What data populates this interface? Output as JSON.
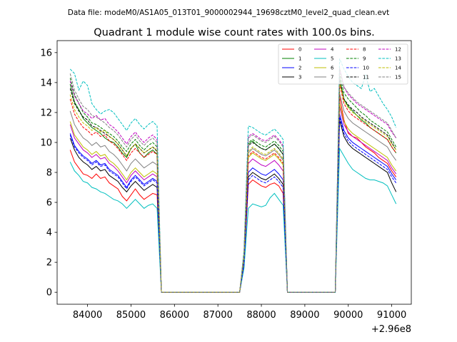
{
  "chart_data": {
    "type": "line",
    "suptitle": "Data file: modeM0/AS1A05_013T01_9000002944_19698cztM0_level2_quad_clean.evt",
    "title": "Quadrant 1 module wise count rates with 100.0s bins.",
    "xlabel": "",
    "ylabel": "",
    "x_offset_label": "+2.96e8",
    "xlim": [
      83300,
      91450
    ],
    "ylim": [
      -0.8,
      16.8
    ],
    "xticks": [
      84000,
      85000,
      86000,
      87000,
      88000,
      89000,
      90000,
      91000
    ],
    "yticks": [
      0,
      2,
      4,
      6,
      8,
      10,
      12,
      14,
      16
    ],
    "grid": false,
    "legend": {
      "placement": "top-right",
      "ncol": 4
    },
    "segments": [
      {
        "x_start": 83600,
        "x_end": 85600,
        "step": 100
      },
      {
        "x_start": 87600,
        "x_end": 88500,
        "step": 100
      },
      {
        "x_start": 89800,
        "x_end": 91100,
        "step": 100
      }
    ],
    "gap_x": [
      85700,
      85800,
      87500,
      88600,
      88700,
      89700
    ],
    "series": [
      {
        "name": "0",
        "color": "#ff0000",
        "dash": "solid",
        "values": [
          [
            9.5,
            8.7,
            8.3,
            7.9,
            7.8,
            7.6,
            7.9,
            7.6,
            7.7,
            7.3,
            7.1,
            6.9,
            6.4,
            6.1,
            6.5,
            6.9,
            6.5,
            6.2,
            6.4,
            6.6,
            6.5
          ],
          [
            1.8,
            7.2,
            7.5,
            7.3,
            7.1,
            7.0,
            7.2,
            7.3,
            7.1,
            6.6
          ],
          [
            13.1,
            11.5,
            10.6,
            10.4,
            10.3,
            10.0,
            9.7,
            9.5,
            9.3,
            9.0,
            8.8,
            8.6,
            8.1,
            7.7
          ]
        ]
      },
      {
        "name": "1",
        "color": "#008000",
        "dash": "solid",
        "values": [
          [
            13.9,
            12.7,
            12.2,
            11.6,
            11.3,
            11.0,
            10.8,
            10.6,
            10.3,
            10.1,
            10.0,
            9.7,
            9.3,
            9.0,
            9.6,
            9.9,
            9.3,
            9.0,
            9.3,
            9.5,
            9.2
          ],
          [
            2.5,
            9.9,
            10.1,
            9.8,
            9.6,
            9.5,
            9.7,
            9.9,
            9.6,
            9.2
          ],
          [
            14.3,
            12.9,
            12.4,
            12.1,
            11.8,
            11.5,
            11.3,
            11.0,
            10.8,
            10.6,
            10.4,
            10.2,
            9.7,
            9.3
          ]
        ]
      },
      {
        "name": "2",
        "color": "#0000ff",
        "dash": "solid",
        "values": [
          [
            10.6,
            9.8,
            9.4,
            9.1,
            8.9,
            8.6,
            8.8,
            8.5,
            8.6,
            8.2,
            8.0,
            7.8,
            7.4,
            7.0,
            7.5,
            7.8,
            7.5,
            7.2,
            7.4,
            7.6,
            7.4
          ],
          [
            2.0,
            8.0,
            8.3,
            8.1,
            7.9,
            7.8,
            8.0,
            8.2,
            7.9,
            7.5
          ],
          [
            11.9,
            10.8,
            10.3,
            10.0,
            9.8,
            9.6,
            9.4,
            9.2,
            9.0,
            8.8,
            8.6,
            8.4,
            7.9,
            7.5
          ]
        ]
      },
      {
        "name": "3",
        "color": "#000000",
        "dash": "solid",
        "values": [
          [
            10.3,
            9.5,
            9.0,
            8.7,
            8.5,
            8.2,
            8.4,
            8.1,
            8.2,
            7.8,
            7.6,
            7.4,
            7.0,
            6.7,
            7.1,
            7.4,
            7.1,
            6.8,
            7.0,
            7.2,
            7.0
          ],
          [
            1.9,
            7.7,
            8.0,
            7.8,
            7.6,
            7.5,
            7.7,
            7.9,
            7.6,
            7.2
          ],
          [
            11.5,
            10.4,
            9.9,
            9.6,
            9.4,
            9.2,
            9.0,
            8.8,
            8.6,
            8.4,
            8.2,
            8.0,
            7.3,
            6.7
          ]
        ]
      },
      {
        "name": "4",
        "color": "#bf00bf",
        "dash": "solid",
        "values": [
          [
            11.2,
            10.3,
            9.9,
            9.5,
            9.3,
            9.0,
            9.2,
            8.9,
            9.0,
            8.6,
            8.4,
            8.1,
            7.7,
            7.3,
            7.8,
            8.1,
            7.8,
            7.5,
            7.7,
            7.9,
            7.7
          ],
          [
            2.1,
            8.6,
            8.9,
            8.7,
            8.5,
            8.4,
            8.6,
            8.8,
            8.5,
            8.1
          ],
          [
            12.4,
            11.2,
            10.7,
            10.4,
            10.2,
            10.0,
            9.8,
            9.6,
            9.4,
            9.2,
            9.0,
            8.8,
            8.3,
            7.9
          ]
        ]
      },
      {
        "name": "5",
        "color": "#00bfbf",
        "dash": "solid",
        "values": [
          [
            8.7,
            8.1,
            7.8,
            7.4,
            7.3,
            7.0,
            6.9,
            6.7,
            6.6,
            6.4,
            6.2,
            6.1,
            5.9,
            5.6,
            5.9,
            6.2,
            5.9,
            5.6,
            5.8,
            5.9,
            5.6
          ],
          [
            1.6,
            5.6,
            5.9,
            5.8,
            5.7,
            5.8,
            6.3,
            6.6,
            6.2,
            5.8
          ],
          [
            9.6,
            9.1,
            8.6,
            8.2,
            8.0,
            7.8,
            7.6,
            7.5,
            7.5,
            7.4,
            7.3,
            7.1,
            6.5,
            5.9
          ]
        ]
      },
      {
        "name": "6",
        "color": "#bfbf00",
        "dash": "solid",
        "values": [
          [
            11.4,
            10.5,
            10.1,
            9.7,
            9.5,
            9.2,
            9.4,
            9.1,
            9.2,
            8.8,
            8.6,
            8.3,
            7.9,
            7.5,
            8.0,
            8.3,
            8.0,
            7.7,
            7.9,
            8.1,
            7.9
          ],
          [
            2.2,
            9.0,
            9.3,
            9.1,
            8.9,
            8.8,
            9.0,
            9.2,
            8.9,
            8.5
          ],
          [
            12.6,
            11.4,
            10.9,
            10.6,
            10.4,
            10.2,
            10.0,
            9.8,
            9.6,
            9.4,
            9.2,
            9.0,
            8.5,
            8.1
          ]
        ]
      },
      {
        "name": "7",
        "color": "#808080",
        "dash": "solid",
        "values": [
          [
            12.1,
            11.2,
            10.7,
            10.3,
            10.1,
            9.8,
            10.0,
            9.7,
            9.8,
            9.4,
            9.2,
            8.9,
            8.5,
            8.1,
            8.6,
            8.9,
            8.6,
            8.3,
            8.5,
            8.7,
            8.5
          ],
          [
            2.3,
            9.3,
            9.6,
            9.4,
            9.2,
            9.1,
            9.3,
            9.5,
            9.2,
            8.8
          ],
          [
            13.3,
            12.1,
            11.6,
            11.3,
            11.1,
            10.9,
            10.7,
            10.5,
            10.3,
            10.1,
            9.9,
            9.7,
            9.2,
            8.8
          ]
        ]
      },
      {
        "name": "8",
        "color": "#ff0000",
        "dash": "dashed",
        "values": [
          [
            12.9,
            11.9,
            11.4,
            11.0,
            10.8,
            10.5,
            10.7,
            10.4,
            10.5,
            10.1,
            9.9,
            9.6,
            9.2,
            8.8,
            9.3,
            9.6,
            9.3,
            9.0,
            9.2,
            9.4,
            9.2
          ],
          [
            2.4,
            9.1,
            9.4,
            9.2,
            9.0,
            8.9,
            9.1,
            9.3,
            9.0,
            8.6
          ],
          [
            13.9,
            12.6,
            12.1,
            11.8,
            11.6,
            11.4,
            11.2,
            11.0,
            10.8,
            10.6,
            10.4,
            10.2,
            9.7,
            9.3
          ]
        ]
      },
      {
        "name": "9",
        "color": "#008000",
        "dash": "dashed",
        "values": [
          [
            14.3,
            13.2,
            12.6,
            12.0,
            11.7,
            11.3,
            11.2,
            11.0,
            10.8,
            10.6,
            10.4,
            10.1,
            9.7,
            9.4,
            9.9,
            10.2,
            9.8,
            9.5,
            9.8,
            10.0,
            9.7
          ],
          [
            2.5,
            10.0,
            10.2,
            10.0,
            9.8,
            9.7,
            9.9,
            10.1,
            9.8,
            9.4
          ],
          [
            14.6,
            13.3,
            12.9,
            12.6,
            12.3,
            12.0,
            11.8,
            11.5,
            11.3,
            11.1,
            10.9,
            10.7,
            10.2,
            9.7
          ]
        ]
      },
      {
        "name": "10",
        "color": "#0000ff",
        "dash": "dashed",
        "values": [
          [
            10.5,
            9.7,
            9.3,
            9.0,
            8.8,
            8.5,
            8.7,
            8.4,
            8.5,
            8.1,
            7.9,
            7.7,
            7.3,
            6.9,
            7.4,
            7.7,
            7.4,
            7.1,
            7.3,
            7.5,
            7.3
          ],
          [
            1.9,
            7.5,
            7.8,
            7.6,
            7.4,
            7.3,
            7.5,
            7.7,
            7.4,
            7.0
          ],
          [
            11.7,
            10.6,
            10.1,
            9.8,
            9.6,
            9.4,
            9.2,
            9.0,
            8.8,
            8.6,
            8.4,
            8.2,
            7.7,
            7.3
          ]
        ]
      },
      {
        "name": "11",
        "color": "#000000",
        "dash": "dashed",
        "values": [
          [
            13.6,
            12.6,
            12.1,
            11.7,
            11.5,
            11.1,
            11.0,
            10.8,
            10.6,
            10.4,
            10.2,
            9.9,
            9.5,
            9.1,
            9.6,
            9.9,
            9.6,
            9.3,
            9.5,
            9.7,
            9.4
          ],
          [
            2.5,
            9.8,
            10.0,
            9.8,
            9.6,
            9.5,
            9.7,
            9.9,
            9.6,
            9.2
          ],
          [
            14.2,
            12.9,
            12.5,
            12.2,
            12.0,
            11.7,
            11.5,
            11.3,
            11.1,
            10.9,
            10.7,
            10.5,
            10.0,
            9.5
          ]
        ]
      },
      {
        "name": "12",
        "color": "#bf00bf",
        "dash": "dashed",
        "values": [
          [
            14.1,
            13.1,
            12.6,
            12.1,
            11.9,
            11.6,
            11.8,
            11.5,
            11.6,
            11.2,
            11.0,
            10.7,
            10.3,
            9.9,
            10.4,
            10.7,
            10.3,
            10.0,
            10.3,
            10.5,
            10.2
          ],
          [
            2.6,
            10.4,
            10.6,
            10.4,
            10.2,
            10.1,
            10.3,
            10.5,
            10.2,
            9.8
          ],
          [
            14.9,
            13.7,
            13.2,
            12.9,
            12.6,
            12.4,
            12.2,
            12.0,
            11.8,
            11.6,
            11.4,
            11.2,
            10.7,
            10.3
          ]
        ]
      },
      {
        "name": "13",
        "color": "#00bfbf",
        "dash": "dashed",
        "values": [
          [
            14.9,
            14.6,
            13.5,
            14.1,
            13.8,
            12.6,
            12.2,
            11.9,
            12.1,
            12.2,
            12.0,
            11.6,
            11.2,
            10.8,
            11.3,
            11.6,
            11.2,
            10.9,
            11.2,
            11.4,
            11.1
          ],
          [
            2.8,
            11.1,
            11.0,
            10.8,
            10.6,
            10.5,
            10.7,
            10.9,
            10.6,
            10.2
          ],
          [
            15.6,
            14.9,
            14.4,
            14.0,
            13.8,
            13.6,
            14.5,
            13.4,
            13.6,
            13.1,
            12.6,
            12.2,
            11.7,
            11.0
          ]
        ]
      },
      {
        "name": "14",
        "color": "#bfbf00",
        "dash": "dashed",
        "values": [
          [
            13.2,
            12.2,
            11.7,
            11.3,
            11.1,
            10.8,
            11.0,
            10.7,
            10.8,
            10.4,
            10.2,
            9.9,
            9.5,
            9.1,
            9.6,
            9.9,
            9.6,
            9.3,
            9.5,
            9.7,
            9.5
          ],
          [
            2.4,
            9.4,
            9.7,
            9.5,
            9.3,
            9.2,
            9.4,
            9.6,
            9.3,
            8.9
          ],
          [
            14.0,
            12.8,
            12.3,
            12.0,
            11.8,
            11.6,
            11.4,
            11.2,
            11.0,
            10.8,
            10.6,
            10.4,
            9.9,
            9.5
          ]
        ]
      },
      {
        "name": "15",
        "color": "#808080",
        "dash": "dashed",
        "values": [
          [
            14.6,
            13.5,
            12.9,
            12.4,
            12.2,
            11.8,
            11.7,
            11.5,
            11.3,
            11.0,
            10.8,
            10.5,
            10.1,
            9.7,
            10.2,
            10.5,
            10.1,
            9.8,
            10.1,
            10.3,
            10.0
          ],
          [
            2.6,
            10.3,
            10.5,
            10.3,
            10.1,
            10.0,
            10.2,
            10.4,
            10.1,
            9.7
          ],
          [
            15.0,
            13.7,
            13.3,
            13.0,
            12.7,
            12.5,
            12.3,
            12.1,
            11.9,
            11.7,
            11.5,
            11.3,
            10.8,
            10.3
          ]
        ]
      }
    ]
  }
}
